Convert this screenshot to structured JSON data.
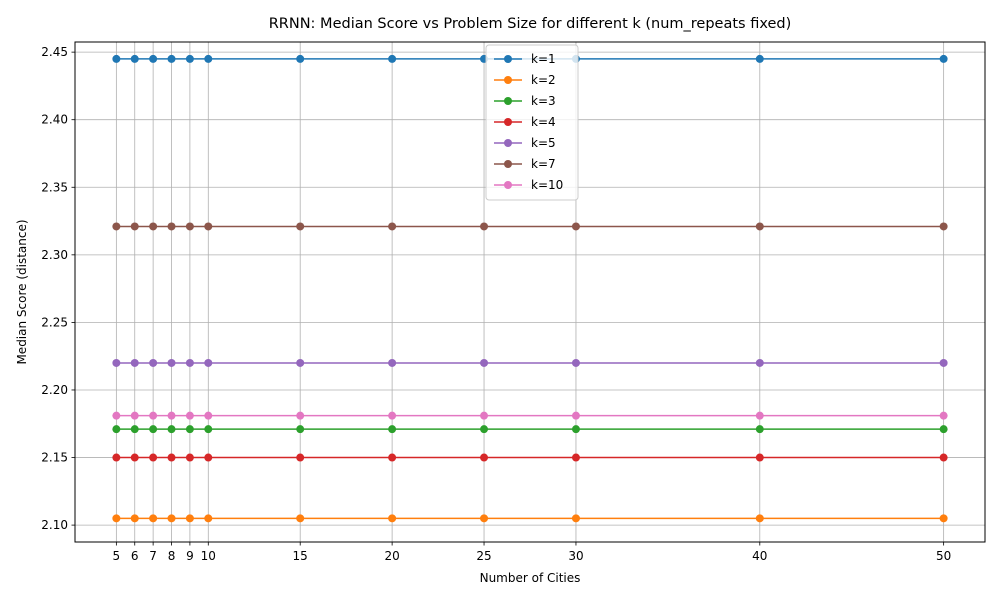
{
  "chart_data": {
    "type": "line",
    "title": "RRNN: Median Score vs Problem Size for different k (num_repeats fixed)",
    "xlabel": "Number of Cities",
    "ylabel": "Median Score (distance)",
    "xlim": [
      2.75,
      52.25
    ],
    "ylim": [
      2.0875,
      2.4575
    ],
    "x": [
      5,
      6,
      7,
      8,
      9,
      10,
      15,
      20,
      25,
      30,
      40,
      50
    ],
    "x_tick_labels": [
      "5",
      "6",
      "7",
      "8",
      "9",
      "10",
      "15",
      "20",
      "25",
      "30",
      "40",
      "50"
    ],
    "y_ticks": [
      2.1,
      2.15,
      2.2,
      2.25,
      2.3,
      2.35,
      2.4,
      2.45
    ],
    "y_tick_labels": [
      "2.10",
      "2.15",
      "2.20",
      "2.25",
      "2.30",
      "2.35",
      "2.40",
      "2.45"
    ],
    "grid": true,
    "legend_position": "top-center",
    "series": [
      {
        "name": "k=1",
        "color": "#1f77b4",
        "values": [
          2.445,
          2.445,
          2.445,
          2.445,
          2.445,
          2.445,
          2.445,
          2.445,
          2.445,
          2.445,
          2.445,
          2.445
        ]
      },
      {
        "name": "k=2",
        "color": "#ff7f0e",
        "values": [
          2.105,
          2.105,
          2.105,
          2.105,
          2.105,
          2.105,
          2.105,
          2.105,
          2.105,
          2.105,
          2.105,
          2.105
        ]
      },
      {
        "name": "k=3",
        "color": "#2ca02c",
        "values": [
          2.171,
          2.171,
          2.171,
          2.171,
          2.171,
          2.171,
          2.171,
          2.171,
          2.171,
          2.171,
          2.171,
          2.171
        ]
      },
      {
        "name": "k=4",
        "color": "#d62728",
        "values": [
          2.15,
          2.15,
          2.15,
          2.15,
          2.15,
          2.15,
          2.15,
          2.15,
          2.15,
          2.15,
          2.15,
          2.15
        ]
      },
      {
        "name": "k=5",
        "color": "#9467bd",
        "values": [
          2.22,
          2.22,
          2.22,
          2.22,
          2.22,
          2.22,
          2.22,
          2.22,
          2.22,
          2.22,
          2.22,
          2.22
        ]
      },
      {
        "name": "k=7",
        "color": "#8c564b",
        "values": [
          2.321,
          2.321,
          2.321,
          2.321,
          2.321,
          2.321,
          2.321,
          2.321,
          2.321,
          2.321,
          2.321,
          2.321
        ]
      },
      {
        "name": "k=10",
        "color": "#e377c2",
        "values": [
          2.181,
          2.181,
          2.181,
          2.181,
          2.181,
          2.181,
          2.181,
          2.181,
          2.181,
          2.181,
          2.181,
          2.181
        ]
      }
    ]
  }
}
